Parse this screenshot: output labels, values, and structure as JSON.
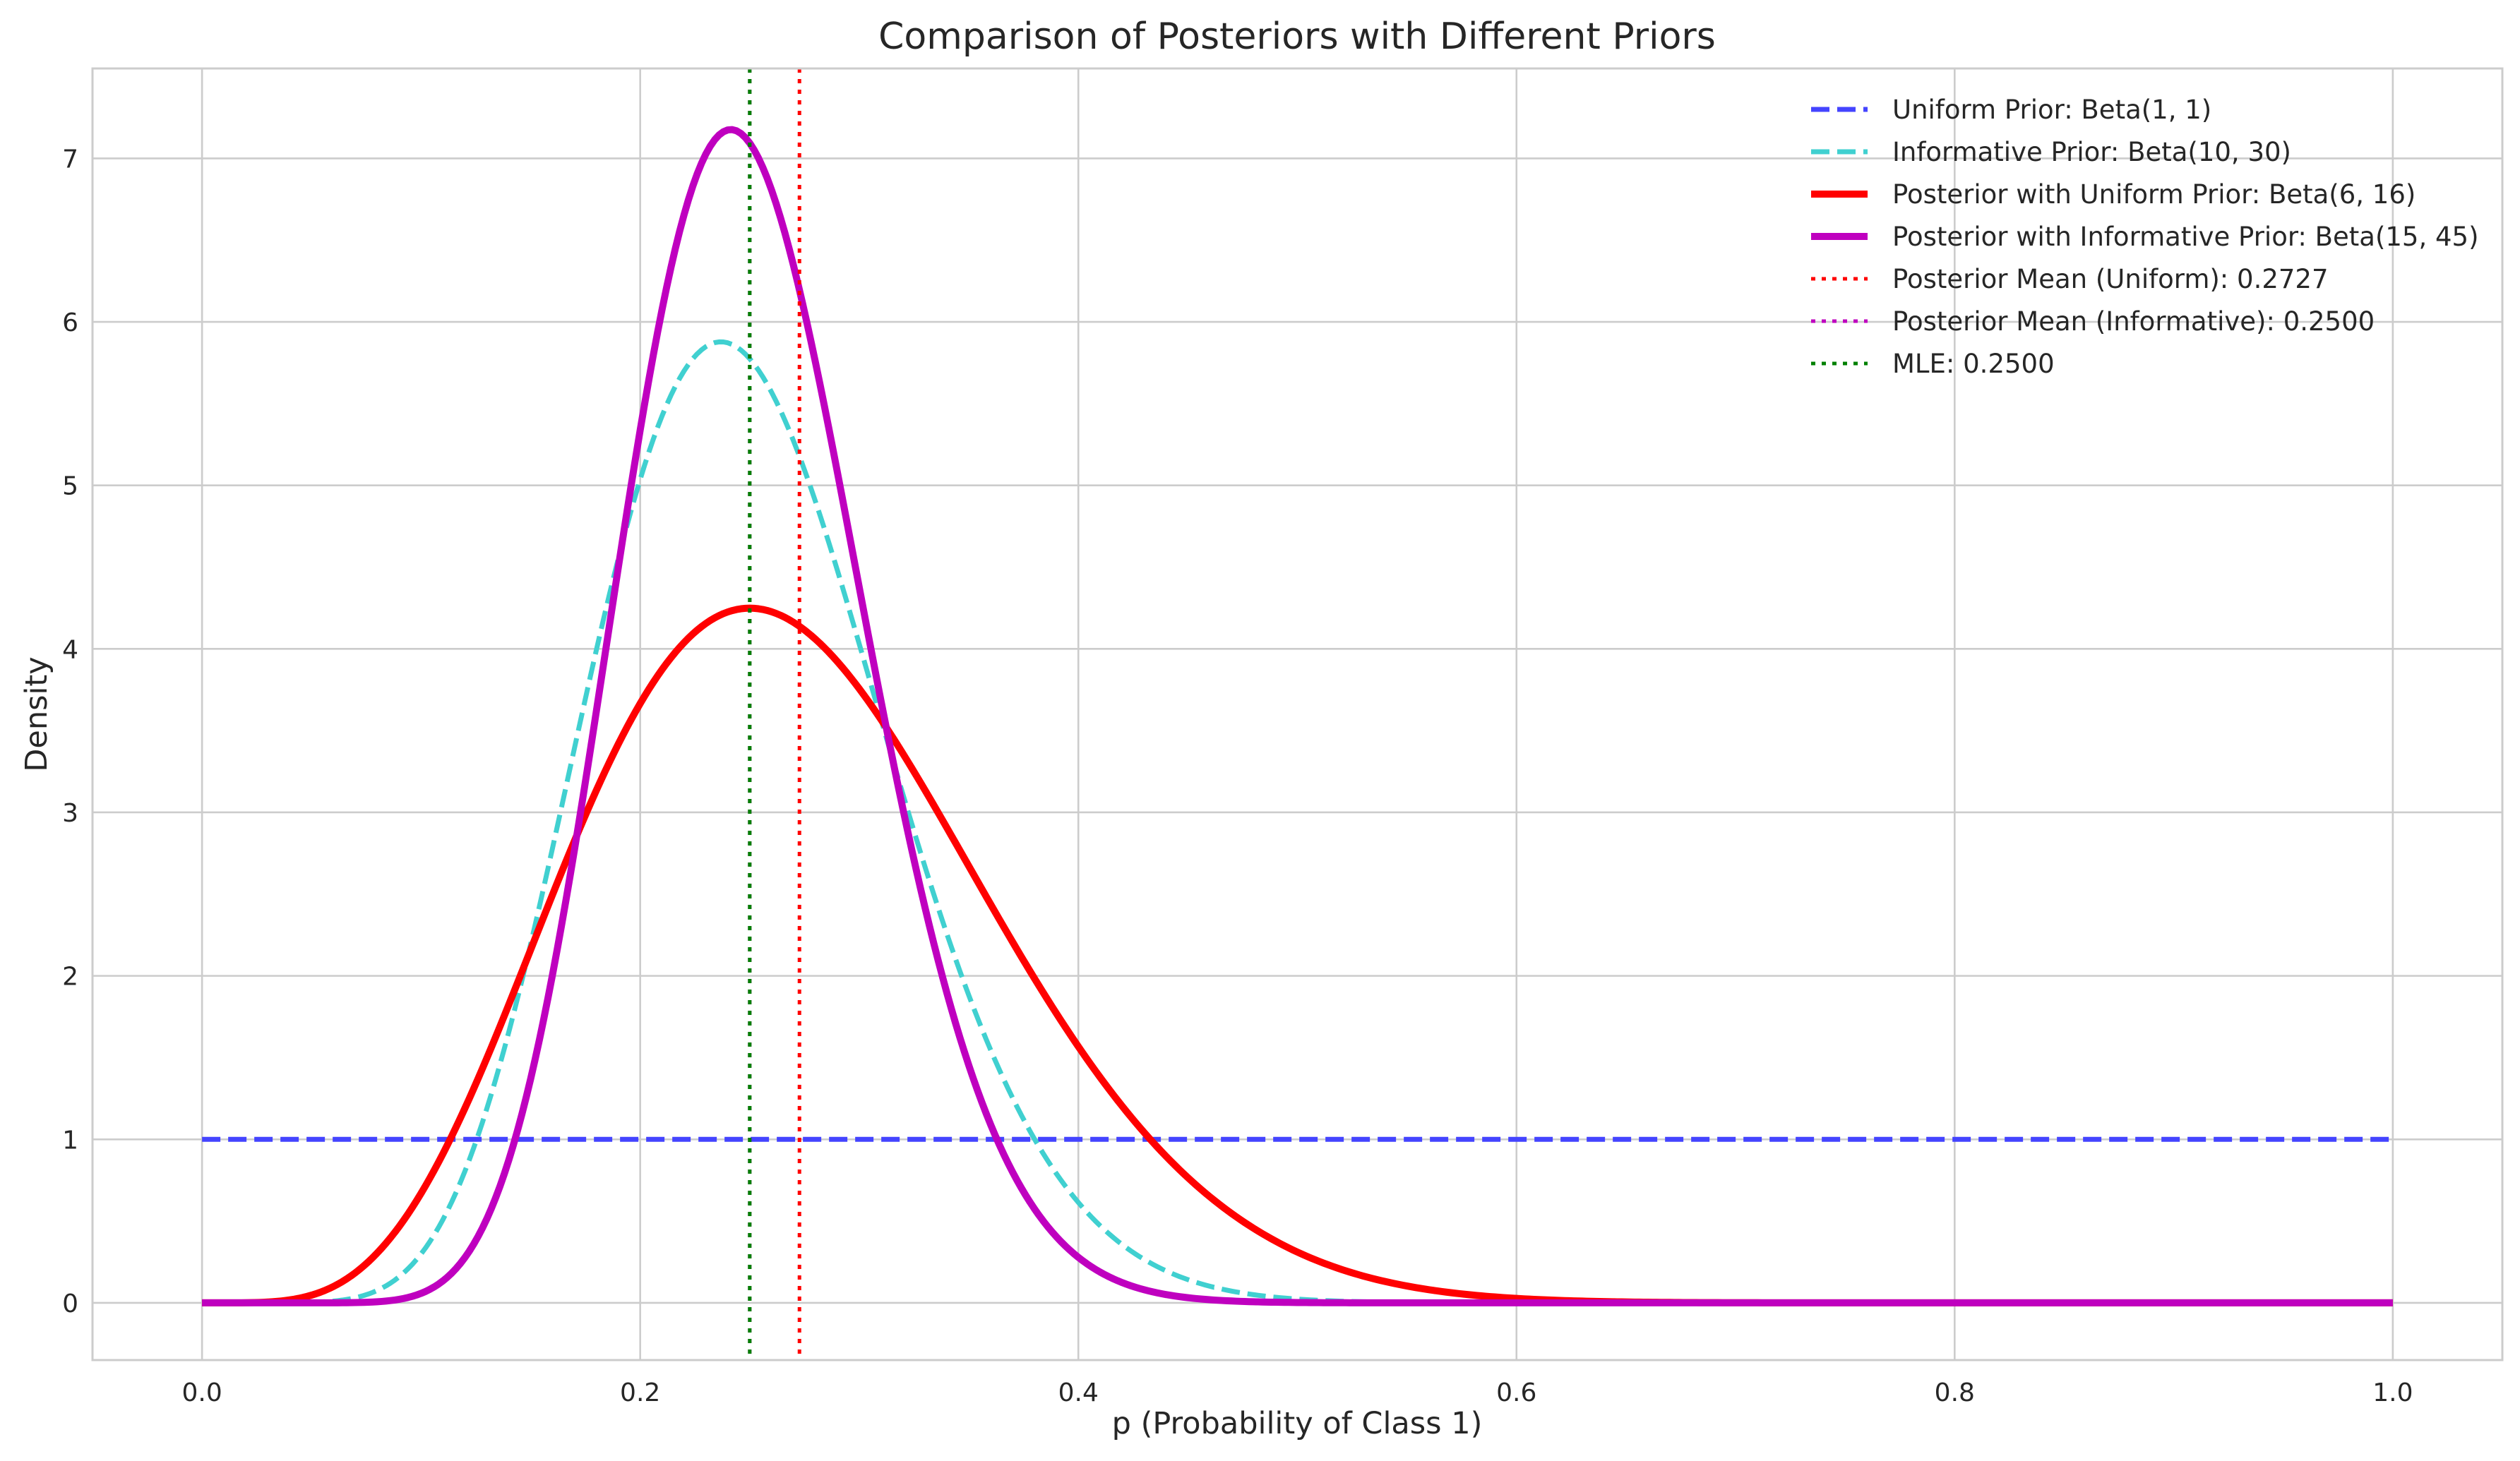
{
  "chart_data": {
    "type": "line",
    "title": "Comparison of Posteriors with Different Priors",
    "xlabel": "p (Probability of Class 1)",
    "ylabel": "Density",
    "xlim": [
      -0.05,
      1.05
    ],
    "ylim": [
      -0.35,
      7.55
    ],
    "x_ticks": [
      0.0,
      0.2,
      0.4,
      0.6,
      0.8,
      1.0
    ],
    "x_tick_labels": [
      "0.0",
      "0.2",
      "0.4",
      "0.6",
      "0.8",
      "1.0"
    ],
    "y_ticks": [
      0,
      1,
      2,
      3,
      4,
      5,
      6,
      7
    ],
    "y_tick_labels": [
      "0",
      "1",
      "2",
      "3",
      "4",
      "5",
      "6",
      "7"
    ],
    "grid": true,
    "legend_position": "top-right",
    "series": [
      {
        "name": "Uniform Prior: Beta(1, 1)",
        "kind": "beta",
        "alpha": 1,
        "beta": 1,
        "color": "#4444ff",
        "style": "dashed"
      },
      {
        "name": "Informative Prior: Beta(10, 30)",
        "kind": "beta",
        "alpha": 10,
        "beta": 30,
        "color": "#40d0d0",
        "style": "dashed"
      },
      {
        "name": "Posterior with Uniform Prior: Beta(6, 16)",
        "kind": "beta",
        "alpha": 6,
        "beta": 16,
        "color": "#ff0000",
        "style": "solid"
      },
      {
        "name": "Posterior with Informative Prior: Beta(15, 45)",
        "kind": "beta",
        "alpha": 15,
        "beta": 45,
        "color": "#bf00bf",
        "style": "solid"
      },
      {
        "name": "Posterior Mean (Uniform): 0.2727",
        "kind": "vline",
        "x": 0.2727,
        "color": "#ff0000",
        "style": "dotted"
      },
      {
        "name": "Posterior Mean (Informative): 0.2500",
        "kind": "vline",
        "x": 0.25,
        "color": "#bf00bf",
        "style": "dotted"
      },
      {
        "name": "MLE: 0.2500",
        "kind": "vline",
        "x": 0.25,
        "color": "#008000",
        "style": "dotted"
      }
    ]
  }
}
